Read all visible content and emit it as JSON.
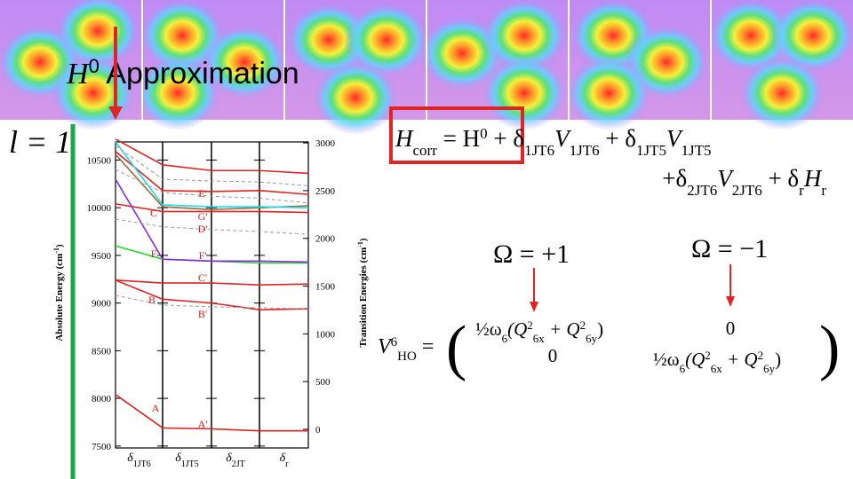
{
  "title": [
    "H",
    "0",
    " Approximation"
  ],
  "state_label": "l = 1",
  "equation_1": [
    "H",
    "corr",
    " = H",
    "0",
    " + δ",
    "1JT6",
    "V",
    "1JT6",
    " + δ",
    "1JT5",
    "V",
    "1JT5"
  ],
  "equation_2": [
    "+δ",
    "2JT6",
    "V",
    "2JT6",
    " + δ",
    "r",
    "H",
    "r"
  ],
  "omega_plus": "Ω = +1",
  "omega_minus": "Ω = −1",
  "matrix": {
    "lhs": [
      "V",
      "6",
      "HO",
      " = "
    ],
    "cell_11": [
      "½ω",
      "6",
      "(Q",
      "2",
      "6x",
      " + Q",
      "2",
      "6y",
      ")"
    ],
    "cell_12": "0",
    "cell_21": "0",
    "cell_22": [
      "½ω",
      "6",
      "(Q",
      "2",
      "6x",
      " + Q",
      "2",
      "6y",
      ")"
    ]
  },
  "chart_data": {
    "type": "line",
    "x_labels": [
      [
        "δ",
        "1JT6"
      ],
      [
        "δ",
        "1JT5"
      ],
      [
        "δ",
        "2JT"
      ],
      [
        "δ",
        "r"
      ]
    ],
    "ylabel": [
      "Absolute Energy (cm",
      "-1",
      ")"
    ],
    "y2label": [
      "Transition Energies (cm",
      "-1",
      ")"
    ],
    "ylim": [
      7480,
      10690
    ],
    "yticks": [
      7500,
      8000,
      8500,
      9000,
      9500,
      10000,
      10500
    ],
    "y2lim": [
      -195,
      3010
    ],
    "y2ticks": [
      0,
      500,
      1000,
      1500,
      2000,
      2500,
      3000
    ],
    "annotations": [
      "A",
      "A'",
      "B",
      "B'",
      "C",
      "C'",
      "D'",
      "E'",
      "F",
      "F'",
      "G'"
    ],
    "series": [
      {
        "color": "#e02424",
        "values": [
          8040,
          7690,
          7680,
          7660,
          7660
        ]
      },
      {
        "color": "#e02424",
        "values": [
          9240,
          9040,
          9000,
          8930,
          8940
        ]
      },
      {
        "color": "#e02424",
        "values": [
          9240,
          9210,
          9210,
          9190,
          9200
        ]
      },
      {
        "color": "#e02424",
        "values": [
          10590,
          10180,
          10170,
          10180,
          10140
        ]
      },
      {
        "color": "#e02424",
        "values": [
          10720,
          10450,
          10390,
          10390,
          10360
        ]
      },
      {
        "color": "#e02424",
        "values": [
          10040,
          9960,
          9960,
          9960,
          9950
        ]
      },
      {
        "color": "#2ad42a",
        "values": [
          9600,
          9460,
          9440,
          9420,
          9420
        ]
      },
      {
        "color": "#8a2be2",
        "values": [
          10300,
          9460,
          9440,
          9440,
          9430
        ]
      },
      {
        "color": "#9a6a3a",
        "values": [
          10560,
          10010,
          9980,
          10000,
          10020
        ]
      },
      {
        "color": "#22d8ee",
        "values": [
          10690,
          10030,
          10010,
          10010,
          10000
        ]
      },
      {
        "color": "#9a9a9a",
        "dashed": true,
        "values": [
          10650,
          10300,
          10280,
          10270,
          10230
        ]
      },
      {
        "color": "#9a9a9a",
        "dashed": true,
        "values": [
          10400,
          10160,
          10120,
          10100,
          10050
        ]
      },
      {
        "color": "#9a9a9a",
        "dashed": true,
        "values": [
          9880,
          9800,
          9770,
          9750,
          9720
        ]
      },
      {
        "color": "#9a9a9a",
        "dashed": true,
        "values": [
          9080,
          8980,
          8960,
          8950,
          8940
        ]
      }
    ]
  }
}
